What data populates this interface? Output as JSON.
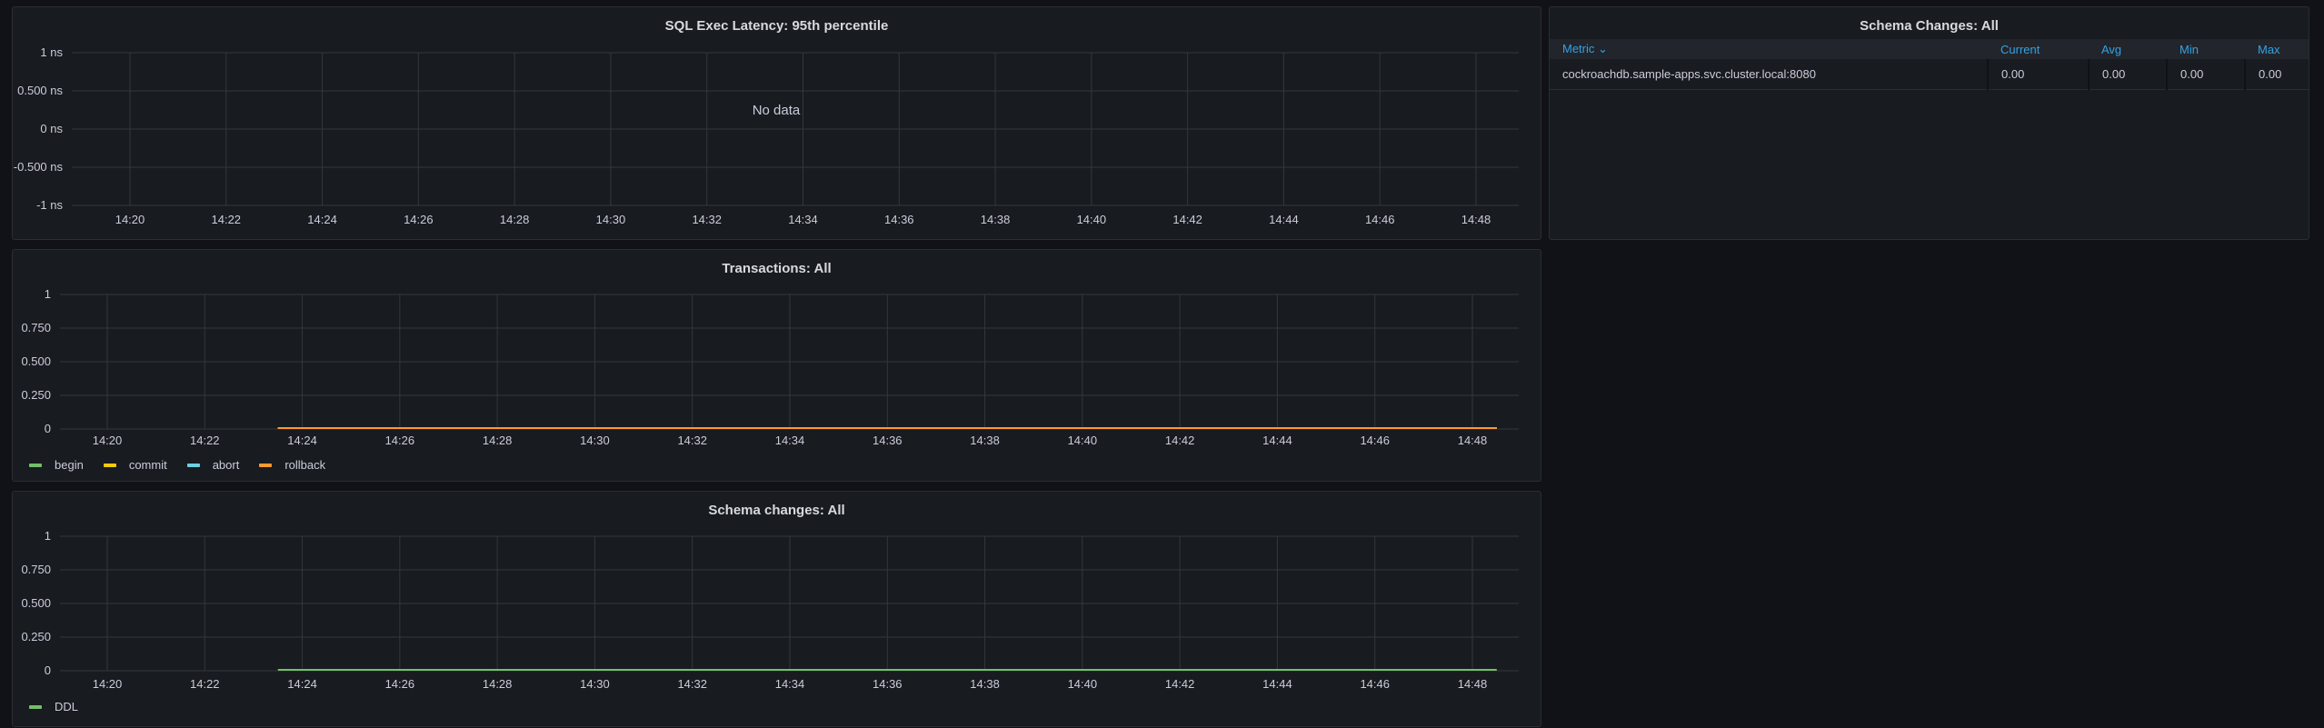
{
  "panels": {
    "latency": {
      "title": "SQL Exec Latency: 95th percentile",
      "no_data": "No data"
    },
    "transactions": {
      "title": "Transactions: All"
    },
    "schema_graph": {
      "title": "Schema changes: All"
    },
    "schema_table": {
      "title": "Schema Changes: All",
      "columns": [
        "Metric",
        "Current",
        "Avg",
        "Min",
        "Max"
      ],
      "sort_icon": "chevron-down-icon",
      "rows": [
        [
          "cockroachdb.sample-apps.svc.cluster.local:8080",
          "0.00",
          "0.00",
          "0.00",
          "0.00"
        ]
      ]
    }
  },
  "colors": {
    "begin": "#73bf69",
    "commit": "#f2cc0c",
    "abort": "#6ed0e0",
    "rollback": "#ff9830",
    "DDL": "#73bf69",
    "header_text": "#33a2e5"
  },
  "chart_data": [
    {
      "type": "line",
      "title": "SQL Exec Latency: 95th percentile",
      "x_ticks": [
        "14:20",
        "14:22",
        "14:24",
        "14:26",
        "14:28",
        "14:30",
        "14:32",
        "14:34",
        "14:36",
        "14:38",
        "14:40",
        "14:42",
        "14:44",
        "14:46",
        "14:48"
      ],
      "y_ticks": [
        "1 ns",
        "0.500 ns",
        "0 ns",
        "-0.500 ns",
        "-1 ns"
      ],
      "ylim": [
        -1,
        1
      ],
      "grid": true,
      "series": []
    },
    {
      "type": "line",
      "title": "Transactions: All",
      "x_ticks": [
        "14:20",
        "14:22",
        "14:24",
        "14:26",
        "14:28",
        "14:30",
        "14:32",
        "14:34",
        "14:36",
        "14:38",
        "14:40",
        "14:42",
        "14:44",
        "14:46",
        "14:48"
      ],
      "y_ticks": [
        "1",
        "0.750",
        "0.500",
        "0.250",
        "0"
      ],
      "ylim": [
        0,
        1
      ],
      "grid": true,
      "legend": "bottom-left",
      "series": [
        {
          "name": "begin",
          "x": [
            "14:23:30",
            "14:48:30"
          ],
          "values": [
            0,
            0
          ]
        },
        {
          "name": "commit",
          "x": [
            "14:23:30",
            "14:48:30"
          ],
          "values": [
            0,
            0
          ]
        },
        {
          "name": "abort",
          "x": [
            "14:23:30",
            "14:48:30"
          ],
          "values": [
            0,
            0
          ]
        },
        {
          "name": "rollback",
          "x": [
            "14:23:30",
            "14:48:30"
          ],
          "values": [
            0,
            0
          ]
        }
      ]
    },
    {
      "type": "line",
      "title": "Schema changes: All",
      "x_ticks": [
        "14:20",
        "14:22",
        "14:24",
        "14:26",
        "14:28",
        "14:30",
        "14:32",
        "14:34",
        "14:36",
        "14:38",
        "14:40",
        "14:42",
        "14:44",
        "14:46",
        "14:48"
      ],
      "y_ticks": [
        "1",
        "0.750",
        "0.500",
        "0.250",
        "0"
      ],
      "ylim": [
        0,
        1
      ],
      "grid": true,
      "legend": "bottom-left",
      "series": [
        {
          "name": "DDL",
          "x": [
            "14:23:30",
            "14:48:30"
          ],
          "values": [
            0,
            0
          ]
        }
      ]
    }
  ]
}
